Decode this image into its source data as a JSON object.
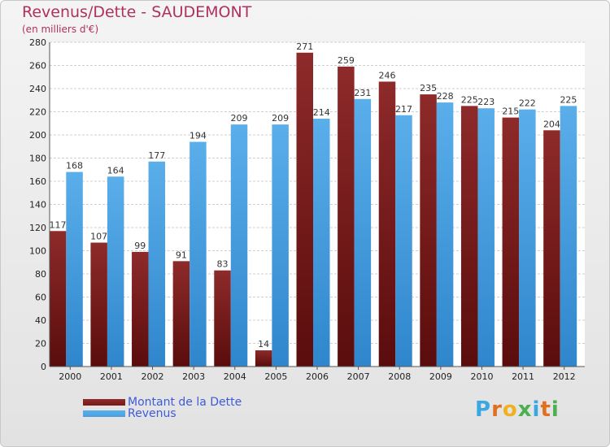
{
  "header": {
    "title": "Revenus/Dette - SAUDEMONT",
    "subtitle": "(en milliers d'€)"
  },
  "colors": {
    "dette": "#7a1a1a",
    "revenus": "#4a9fe0",
    "title": "#b03060",
    "legend_text": "#3d5bd9"
  },
  "legend": {
    "dette_label": "Montant de la Dette",
    "revenus_label": "Revenus"
  },
  "logo": {
    "letters": [
      "P",
      "r",
      "o",
      "x",
      "i",
      "t",
      "i"
    ],
    "colors": [
      "#3aa8e0",
      "#e07020",
      "#f0b020",
      "#4caf50",
      "#3aa8e0",
      "#e07020",
      "#4caf50"
    ]
  },
  "chart_data": {
    "type": "bar",
    "title": "Revenus/Dette - SAUDEMONT",
    "subtitle": "(en milliers d'€)",
    "categories": [
      "2000",
      "2001",
      "2002",
      "2003",
      "2004",
      "2005",
      "2006",
      "2007",
      "2008",
      "2009",
      "2010",
      "2011",
      "2012"
    ],
    "series": [
      {
        "name": "Montant de la Dette",
        "values": [
          117,
          107,
          99,
          91,
          83,
          14,
          271,
          259,
          246,
          235,
          225,
          215,
          204
        ]
      },
      {
        "name": "Revenus",
        "values": [
          168,
          164,
          177,
          194,
          209,
          209,
          214,
          231,
          217,
          228,
          223,
          222,
          225
        ]
      }
    ],
    "ylim": [
      0,
      280
    ],
    "yticks": [
      0,
      20,
      40,
      60,
      80,
      100,
      120,
      140,
      160,
      180,
      200,
      220,
      240,
      260,
      280
    ],
    "grid": true,
    "legend_position": "bottom-left"
  }
}
